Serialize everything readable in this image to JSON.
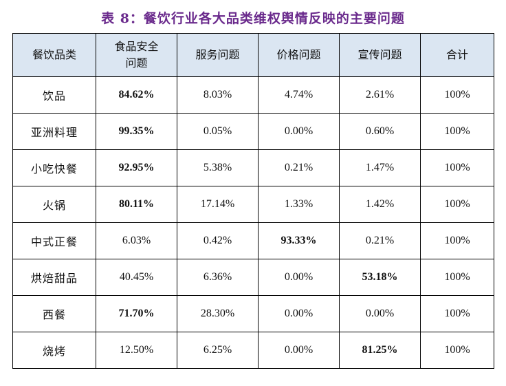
{
  "title": "表 8：餐饮行业各大品类维权舆情反映的主要问题",
  "chart_data": {
    "type": "table",
    "title": "表 8：餐饮行业各大品类维权舆情反映的主要问题",
    "columns": [
      "餐饮品类",
      "食品安全问题",
      "服务问题",
      "价格问题",
      "宣传问题",
      "合计"
    ],
    "rows": [
      {
        "category": "饮品",
        "values": [
          "84.62%",
          "8.03%",
          "4.74%",
          "2.61%",
          "100%"
        ],
        "bold": [
          0
        ]
      },
      {
        "category": "亚洲料理",
        "values": [
          "99.35%",
          "0.05%",
          "0.00%",
          "0.60%",
          "100%"
        ],
        "bold": [
          0
        ]
      },
      {
        "category": "小吃快餐",
        "values": [
          "92.95%",
          "5.38%",
          "0.21%",
          "1.47%",
          "100%"
        ],
        "bold": [
          0
        ]
      },
      {
        "category": "火锅",
        "values": [
          "80.11%",
          "17.14%",
          "1.33%",
          "1.42%",
          "100%"
        ],
        "bold": [
          0
        ]
      },
      {
        "category": "中式正餐",
        "values": [
          "6.03%",
          "0.42%",
          "93.33%",
          "0.21%",
          "100%"
        ],
        "bold": [
          2
        ]
      },
      {
        "category": "烘焙甜品",
        "values": [
          "40.45%",
          "6.36%",
          "0.00%",
          "53.18%",
          "100%"
        ],
        "bold": [
          3
        ]
      },
      {
        "category": "西餐",
        "values": [
          "71.70%",
          "28.30%",
          "0.00%",
          "0.00%",
          "100%"
        ],
        "bold": [
          0
        ]
      },
      {
        "category": "烧烤",
        "values": [
          "12.50%",
          "6.25%",
          "0.00%",
          "81.25%",
          "100%"
        ],
        "bold": [
          3
        ]
      }
    ]
  },
  "colors": {
    "title": "#6a2a8c",
    "header_bg": "#dbe6f2",
    "border": "#000000"
  }
}
